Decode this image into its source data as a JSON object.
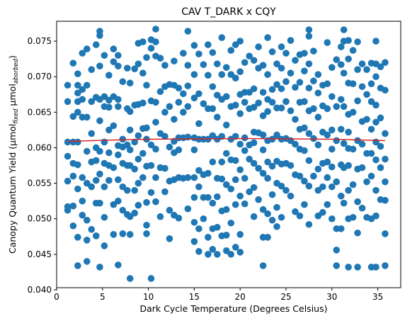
{
  "chart_data": {
    "type": "scatter",
    "title": "CAV T_DARK x CQY",
    "xlabel": "Dark Cycle Temperature (Degrees Celsius)",
    "ylabel_main": "Canopy Quantum Yield (μmol",
    "ylabel_sub1": "fixed",
    "ylabel_mid": " μmol",
    "ylabel_sub2": "aborbed",
    "ylabel_end": ")",
    "xlim": [
      0,
      37.5
    ],
    "ylim": [
      0.0403,
      0.0778
    ],
    "x_ticks": [
      0,
      5,
      10,
      15,
      20,
      25,
      30,
      35
    ],
    "x_tick_labels": [
      "0",
      "5",
      "10",
      "15",
      "20",
      "25",
      "30",
      "35"
    ],
    "y_ticks": [
      0.04,
      0.045,
      0.05,
      0.055,
      0.06,
      0.065,
      0.07,
      0.075
    ],
    "y_tick_labels": [
      "0.040",
      "0.045",
      "0.050",
      "0.055",
      "0.060",
      "0.065",
      "0.070",
      "0.075"
    ],
    "grid": false,
    "point_color": "#1f77b4",
    "fit_color": "#d62728",
    "fit_line": {
      "x": [
        1.2,
        5,
        10,
        15,
        20,
        25,
        30,
        35.8
      ],
      "y": [
        0.0609,
        0.06105,
        0.0612,
        0.06125,
        0.0613,
        0.06125,
        0.0612,
        0.061
      ]
    },
    "columns": [
      {
        "x": 1.2,
        "y": [
          0.0688,
          0.0665,
          0.0608,
          0.0588,
          0.0553,
          0.0517,
          0.0512
        ]
      },
      {
        "x": 1.8,
        "y": [
          0.0719,
          0.0644,
          0.0608,
          0.0578,
          0.056,
          0.0518,
          0.049
        ]
      },
      {
        "x": 2.3,
        "y": [
          0.0704,
          0.0688,
          0.0677,
          0.0665,
          0.065,
          0.0608,
          0.0576,
          0.0542,
          0.0474,
          0.0434
        ]
      },
      {
        "x": 2.8,
        "y": [
          0.0733,
          0.0682,
          0.0668,
          0.0643,
          0.0558,
          0.0525,
          0.0505
        ]
      },
      {
        "x": 3.3,
        "y": [
          0.0739,
          0.0688,
          0.0643,
          0.0595,
          0.055,
          0.0498,
          0.047,
          0.044
        ]
      },
      {
        "x": 3.8,
        "y": [
          0.071,
          0.0665,
          0.062,
          0.058,
          0.0545,
          0.0485
        ]
      },
      {
        "x": 4.3,
        "y": [
          0.0745,
          0.0671,
          0.06,
          0.0582,
          0.0554,
          0.0522,
          0.0476
        ]
      },
      {
        "x": 4.7,
        "y": [
          0.0764,
          0.0758,
          0.0715,
          0.0668,
          0.0638,
          0.0595,
          0.0563,
          0.0522,
          0.0432
        ]
      },
      {
        "x": 5.2,
        "y": [
          0.073,
          0.0672,
          0.0658,
          0.0608,
          0.0578,
          0.0545,
          0.0502,
          0.0462
        ]
      },
      {
        "x": 5.7,
        "y": [
          0.0702,
          0.0667,
          0.0657,
          0.0625,
          0.0593,
          0.0575,
          0.0554
        ]
      },
      {
        "x": 6.2,
        "y": [
          0.0739,
          0.0721,
          0.0672,
          0.0631,
          0.0572,
          0.052,
          0.0478
        ]
      },
      {
        "x": 6.7,
        "y": [
          0.073,
          0.0715,
          0.0668,
          0.0658,
          0.0603,
          0.059,
          0.0555,
          0.0525,
          0.0435
        ]
      },
      {
        "x": 7.2,
        "y": [
          0.0693,
          0.0612,
          0.0601,
          0.0578,
          0.0545,
          0.0512,
          0.0479
        ]
      },
      {
        "x": 7.7,
        "y": [
          0.0712,
          0.0655,
          0.0604,
          0.0575,
          0.054,
          0.0506
        ]
      },
      {
        "x": 8.0,
        "y": [
          0.0691,
          0.0651,
          0.0625,
          0.0597,
          0.0575,
          0.0503,
          0.0478,
          0.0416
        ]
      },
      {
        "x": 8.5,
        "y": [
          0.0711,
          0.066,
          0.0608,
          0.057,
          0.054,
          0.0508
        ]
      },
      {
        "x": 8.9,
        "y": [
          0.0747,
          0.0718,
          0.0661,
          0.0617,
          0.0584,
          0.055,
          0.0519
        ]
      },
      {
        "x": 9.4,
        "y": [
          0.0749,
          0.0705,
          0.0663,
          0.0627,
          0.0592,
          0.0558
        ]
      },
      {
        "x": 9.8,
        "y": [
          0.0727,
          0.0688,
          0.0628,
          0.0612,
          0.0574,
          0.0523,
          0.0491,
          0.0479
        ]
      },
      {
        "x": 10.3,
        "y": [
          0.0752,
          0.074,
          0.0666,
          0.0604,
          0.0575,
          0.0537,
          0.0416
        ]
      },
      {
        "x": 10.8,
        "y": [
          0.0767,
          0.0749,
          0.0729,
          0.0664,
          0.0636,
          0.0598,
          0.0558,
          0.0524
        ]
      },
      {
        "x": 11.3,
        "y": [
          0.0726,
          0.0679,
          0.062,
          0.0572,
          0.0503
        ]
      },
      {
        "x": 11.8,
        "y": [
          0.0716,
          0.0686,
          0.065,
          0.0616,
          0.0571,
          0.0538
        ]
      },
      {
        "x": 12.3,
        "y": [
          0.0689,
          0.0658,
          0.0601,
          0.0553,
          0.0512,
          0.0472
        ]
      },
      {
        "x": 12.8,
        "y": [
          0.0722,
          0.0688,
          0.064,
          0.0609,
          0.0593,
          0.0555,
          0.0505
        ]
      },
      {
        "x": 13.3,
        "y": [
          0.0684,
          0.0664,
          0.0614,
          0.0597,
          0.0558,
          0.0501
        ]
      },
      {
        "x": 13.8,
        "y": [
          0.0733,
          0.0676,
          0.065,
          0.0614,
          0.0557
        ]
      },
      {
        "x": 14.3,
        "y": [
          0.0764,
          0.0716,
          0.0687,
          0.0658,
          0.0615,
          0.0558,
          0.0514
        ]
      },
      {
        "x": 15.0,
        "y": [
          0.0744,
          0.0703,
          0.067,
          0.0614,
          0.0597,
          0.0558,
          0.053,
          0.0495,
          0.0468
        ]
      },
      {
        "x": 15.5,
        "y": [
          0.0732,
          0.0676,
          0.0634,
          0.0612,
          0.0568,
          0.0545,
          0.0486,
          0.0454
        ]
      },
      {
        "x": 16.0,
        "y": [
          0.0717,
          0.0662,
          0.0612,
          0.0562,
          0.053,
          0.05
        ]
      },
      {
        "x": 16.5,
        "y": [
          0.0745,
          0.0702,
          0.0655,
          0.0612,
          0.0564,
          0.053,
          0.0474,
          0.045
        ]
      },
      {
        "x": 17.0,
        "y": [
          0.0734,
          0.0686,
          0.0655,
          0.0617,
          0.058,
          0.0522,
          0.0486,
          0.0457
        ]
      },
      {
        "x": 17.5,
        "y": [
          0.0718,
          0.0674,
          0.0643,
          0.0612,
          0.0557,
          0.0531,
          0.0488,
          0.045
        ]
      },
      {
        "x": 18.0,
        "y": [
          0.0755,
          0.0703,
          0.0668,
          0.0616,
          0.058,
          0.0556,
          0.0511,
          0.0476
        ]
      },
      {
        "x": 18.5,
        "y": [
          0.0713,
          0.0672,
          0.0632,
          0.0592,
          0.0548,
          0.0513,
          0.0477,
          0.0455
        ]
      },
      {
        "x": 19.0,
        "y": [
          0.0737,
          0.0703,
          0.0658,
          0.0612,
          0.0583,
          0.0542,
          0.0494,
          0.045
        ]
      },
      {
        "x": 19.5,
        "y": [
          0.0745,
          0.0698,
          0.066,
          0.0616,
          0.0582,
          0.0555,
          0.052,
          0.046
        ]
      },
      {
        "x": 20.0,
        "y": [
          0.075,
          0.0707,
          0.0675,
          0.0648,
          0.0605,
          0.0569,
          0.0532,
          0.0478,
          0.0453
        ]
      },
      {
        "x": 20.5,
        "y": [
          0.072,
          0.0678,
          0.0664,
          0.0614,
          0.0596,
          0.0557,
          0.0521
        ]
      },
      {
        "x": 21.0,
        "y": [
          0.0729,
          0.0678,
          0.0655,
          0.0604,
          0.0584,
          0.0538
        ]
      },
      {
        "x": 21.5,
        "y": [
          0.0723,
          0.0683,
          0.0657,
          0.0622,
          0.0607,
          0.0578,
          0.0544,
          0.0503
        ]
      },
      {
        "x": 22.0,
        "y": [
          0.0742,
          0.0712,
          0.0663,
          0.0621,
          0.0571,
          0.0527
        ]
      },
      {
        "x": 22.5,
        "y": [
          0.0716,
          0.0678,
          0.0645,
          0.0618,
          0.0597,
          0.0564,
          0.0513,
          0.0474,
          0.0434
        ]
      },
      {
        "x": 23.0,
        "y": [
          0.0755,
          0.0703,
          0.0668,
          0.0651,
          0.061,
          0.058,
          0.0557,
          0.0507,
          0.0474
        ]
      },
      {
        "x": 23.5,
        "y": [
          0.0735,
          0.0682,
          0.0664,
          0.0612,
          0.0574,
          0.0534,
          0.0498
        ]
      },
      {
        "x": 24.0,
        "y": [
          0.0718,
          0.0689,
          0.0656,
          0.0618,
          0.0581,
          0.055,
          0.0516,
          0.0489
        ]
      },
      {
        "x": 24.5,
        "y": [
          0.0742,
          0.0712,
          0.0683,
          0.0656,
          0.0612,
          0.0577,
          0.0546,
          0.0502
        ]
      },
      {
        "x": 25.0,
        "y": [
          0.0733,
          0.0693,
          0.0665,
          0.0613,
          0.0578,
          0.054
        ]
      },
      {
        "x": 25.5,
        "y": [
          0.0751,
          0.0705,
          0.0652,
          0.061,
          0.0575,
          0.0532
        ]
      },
      {
        "x": 26.0,
        "y": [
          0.0723,
          0.0685,
          0.064,
          0.0605,
          0.0562,
          0.051
        ]
      },
      {
        "x": 26.5,
        "y": [
          0.0731,
          0.0692,
          0.0664,
          0.0626,
          0.0598,
          0.056,
          0.0504
        ]
      },
      {
        "x": 27.0,
        "y": [
          0.0733,
          0.0708,
          0.0665,
          0.0628,
          0.0596,
          0.0553,
          0.052
        ]
      },
      {
        "x": 27.5,
        "y": [
          0.0766,
          0.0757,
          0.0718,
          0.0684,
          0.0652,
          0.062,
          0.0582,
          0.0546,
          0.0492
        ]
      },
      {
        "x": 28.0,
        "y": [
          0.0736,
          0.0694,
          0.0655,
          0.0613,
          0.056
        ]
      },
      {
        "x": 28.5,
        "y": [
          0.0703,
          0.0677,
          0.0643,
          0.0604,
          0.057,
          0.054,
          0.0504
        ]
      },
      {
        "x": 29.0,
        "y": [
          0.0688,
          0.0659,
          0.0622,
          0.0578,
          0.0545,
          0.0509
        ]
      },
      {
        "x": 29.5,
        "y": [
          0.0748,
          0.069,
          0.0655,
          0.0618,
          0.058,
          0.0558,
          0.052
        ]
      },
      {
        "x": 30.0,
        "y": [
          0.0713,
          0.0672,
          0.0625,
          0.0598,
          0.0573,
          0.0545,
          0.05
        ]
      },
      {
        "x": 30.5,
        "y": [
          0.0724,
          0.0658,
          0.061,
          0.0552,
          0.0486,
          0.0456,
          0.0434
        ]
      },
      {
        "x": 31.0,
        "y": [
          0.0742,
          0.0717,
          0.0668,
          0.0626,
          0.0576,
          0.0532,
          0.0486
        ]
      },
      {
        "x": 31.3,
        "y": [
          0.0766,
          0.075,
          0.0705,
          0.0658,
          0.0606,
          0.0572,
          0.0522
        ]
      },
      {
        "x": 31.8,
        "y": [
          0.0751,
          0.0725,
          0.0691,
          0.0647,
          0.0622,
          0.0599,
          0.0575,
          0.054,
          0.05,
          0.0432
        ]
      },
      {
        "x": 32.3,
        "y": [
          0.0737,
          0.069,
          0.065,
          0.0598,
          0.0548,
          0.0502
        ]
      },
      {
        "x": 32.8,
        "y": [
          0.0749,
          0.071,
          0.0666,
          0.061,
          0.057,
          0.0524,
          0.048,
          0.0432
        ]
      },
      {
        "x": 33.3,
        "y": [
          0.0718,
          0.0686,
          0.0637,
          0.0605,
          0.0572,
          0.0515
        ]
      },
      {
        "x": 33.8,
        "y": [
          0.071,
          0.0675,
          0.064,
          0.0592,
          0.0552,
          0.0502
        ]
      },
      {
        "x": 34.3,
        "y": [
          0.0719,
          0.069,
          0.0665,
          0.0626,
          0.0592,
          0.056,
          0.05,
          0.0432
        ]
      },
      {
        "x": 34.8,
        "y": [
          0.075,
          0.0718,
          0.07,
          0.066,
          0.0636,
          0.0608,
          0.0583,
          0.054,
          0.0504,
          0.0432
        ]
      },
      {
        "x": 35.3,
        "y": [
          0.0714,
          0.0684,
          0.0642,
          0.0602,
          0.0572,
          0.0527
        ]
      },
      {
        "x": 35.8,
        "y": [
          0.072,
          0.0681,
          0.062,
          0.0584,
          0.0552,
          0.0526,
          0.0479,
          0.0434
        ]
      }
    ]
  }
}
